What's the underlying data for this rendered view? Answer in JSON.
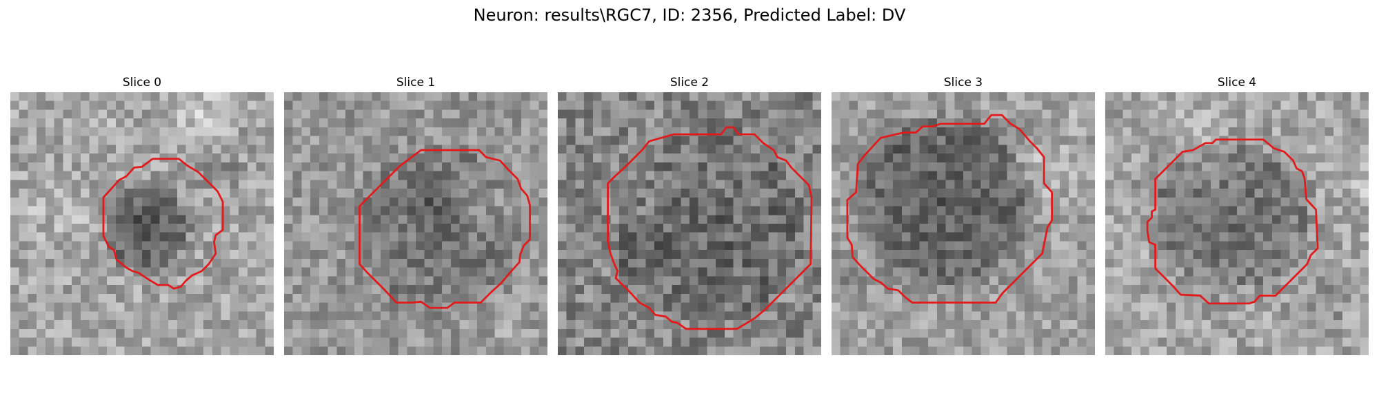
{
  "figure": {
    "title": "Neuron: results\\RGC7, ID: 2356, Predicted Label: DV"
  },
  "slices": [
    {
      "title": "Slice 0"
    },
    {
      "title": "Slice 1"
    },
    {
      "title": "Slice 2"
    },
    {
      "title": "Slice 3"
    },
    {
      "title": "Slice 4"
    }
  ],
  "colors": {
    "contour": "#e31a1c",
    "background": "#ffffff"
  }
}
